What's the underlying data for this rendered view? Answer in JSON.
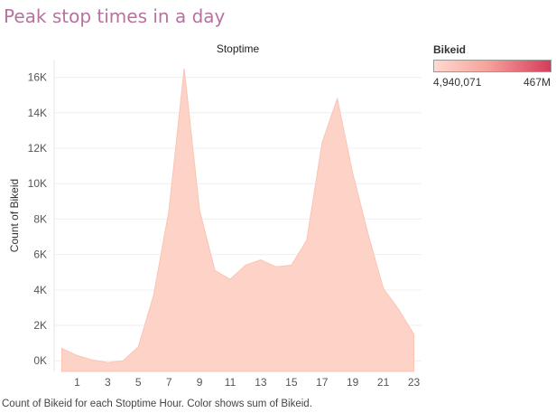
{
  "page": {
    "title": "Peak stop times in a day",
    "caption": "Count of Bikeid for each Stoptime Hour.  Color shows sum of Bikeid."
  },
  "legend": {
    "title": "Bikeid",
    "min_label": "4,940,071",
    "max_label": "467M",
    "color_low": "#ffd9cf",
    "color_high": "#d43d5a"
  },
  "chart_data": {
    "type": "area",
    "title": "Stoptime",
    "ylabel": "Count of Bikeid",
    "xlabel": "",
    "x": [
      0,
      1,
      2,
      3,
      4,
      5,
      6,
      7,
      8,
      9,
      10,
      11,
      12,
      13,
      14,
      15,
      16,
      17,
      18,
      19,
      20,
      21,
      22,
      23
    ],
    "values": [
      700,
      300,
      50,
      -100,
      0,
      800,
      3700,
      8500,
      16500,
      8500,
      5100,
      4600,
      5400,
      5700,
      5300,
      5400,
      6800,
      12300,
      14800,
      10600,
      7200,
      4100,
      2900,
      1500
    ],
    "xticks": [
      1,
      3,
      5,
      7,
      9,
      11,
      13,
      15,
      17,
      19,
      21,
      23
    ],
    "yticks": [
      0,
      2000,
      4000,
      6000,
      8000,
      10000,
      12000,
      14000,
      16000
    ],
    "ytick_labels": [
      "0K",
      "2K",
      "4K",
      "6K",
      "8K",
      "10K",
      "12K",
      "14K",
      "16K"
    ],
    "ylim": [
      -600,
      17000
    ],
    "xlim": [
      -0.5,
      23.5
    ],
    "grid": true,
    "fill_color": "#fdd3c8"
  }
}
